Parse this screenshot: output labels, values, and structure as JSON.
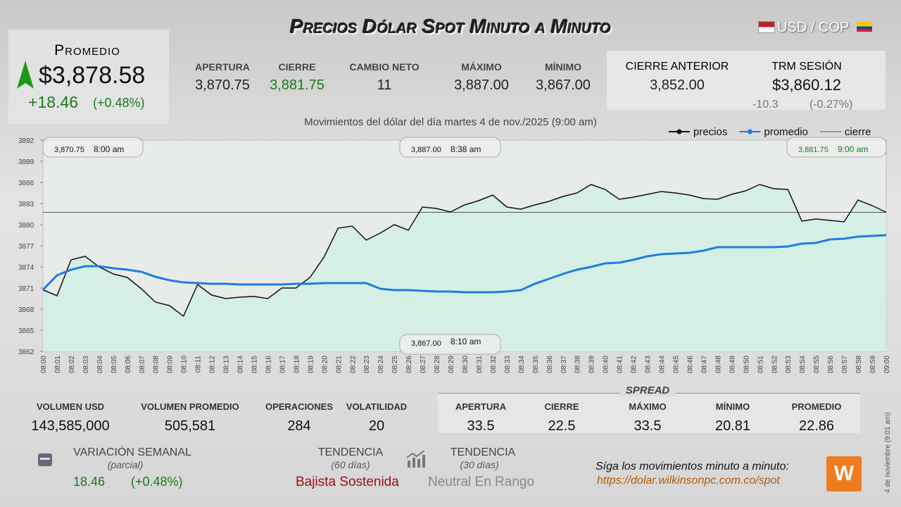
{
  "header": {
    "title": "Precios Dólar Spot Minuto a Minuto",
    "pair": "USD / COP"
  },
  "promedio": {
    "label": "Promedio",
    "price": "$3,878.58",
    "change": "+18.46",
    "change_pct": "(+0.48%)"
  },
  "stats": [
    {
      "label": "APERTURA",
      "value": "3,870.75"
    },
    {
      "label": "CIERRE",
      "value": "3,881.75"
    },
    {
      "label": "CAMBIO NETO",
      "value": "11"
    },
    {
      "label": "MÁXIMO",
      "value": "3,887.00"
    },
    {
      "label": "MÍNIMO",
      "value": "3,867.00"
    }
  ],
  "previous": {
    "close_label": "CIERRE ANTERIOR",
    "close_value": "3,852.00",
    "trm_label": "TRM SESIÓN",
    "trm_value": "$3,860.12",
    "trm_change": "-10.3",
    "trm_change_pct": "(-0.27%)"
  },
  "chart_data": {
    "type": "line",
    "subtitle": "Movimientos del dólar del día martes 4 de nov./2025 (9:00 am)",
    "categories": [
      "08:00",
      "08:01",
      "08:02",
      "08:03",
      "08:04",
      "08:05",
      "08:06",
      "08:07",
      "08:08",
      "08:09",
      "08:10",
      "08:11",
      "08:12",
      "08:13",
      "08:14",
      "08:15",
      "08:16",
      "08:17",
      "08:18",
      "08:19",
      "08:20",
      "08:21",
      "08:22",
      "08:23",
      "08:24",
      "08:25",
      "08:26",
      "08:27",
      "08:28",
      "08:29",
      "08:30",
      "08:31",
      "08:32",
      "08:33",
      "08:34",
      "08:35",
      "08:36",
      "08:37",
      "08:38",
      "08:39",
      "08:40",
      "08:41",
      "08:42",
      "08:43",
      "08:44",
      "08:45",
      "08:46",
      "08:47",
      "08:48",
      "08:49",
      "08:50",
      "08:51",
      "08:52",
      "08:53",
      "08:54",
      "08:55",
      "08:56",
      "08:57",
      "08:58",
      "08:59",
      "09:00"
    ],
    "series": [
      {
        "name": "precios",
        "color": "#111111",
        "values": [
          3870.75,
          3869.9,
          3875,
          3875.5,
          3874,
          3873,
          3872.5,
          3870.9,
          3869,
          3868.5,
          3867,
          3871.5,
          3870,
          3869.5,
          3869.7,
          3869.8,
          3869.5,
          3871,
          3871,
          3872.5,
          3875.4,
          3879.5,
          3879.8,
          3877.8,
          3878.8,
          3880,
          3879.2,
          3882.5,
          3882.3,
          3881.8,
          3882.8,
          3883.4,
          3884.2,
          3882.5,
          3882.2,
          3882.8,
          3883.3,
          3884,
          3884.5,
          3885.7,
          3885,
          3883.6,
          3883.9,
          3884.3,
          3884.7,
          3884.5,
          3884.2,
          3883.7,
          3883.6,
          3884.3,
          3884.8,
          3885.7,
          3885.1,
          3885,
          3880.5,
          3880.8,
          3880.6,
          3880.4,
          3883.5,
          3882.7,
          3881.75
        ]
      },
      {
        "name": "promedio",
        "color": "#1f7de0",
        "values": [
          3870.75,
          3872.8,
          3873.6,
          3874.1,
          3874.1,
          3873.8,
          3873.6,
          3873.3,
          3872.6,
          3872.1,
          3871.8,
          3871.7,
          3871.6,
          3871.6,
          3871.5,
          3871.5,
          3871.5,
          3871.5,
          3871.6,
          3871.6,
          3871.7,
          3871.7,
          3871.7,
          3871.7,
          3870.9,
          3870.7,
          3870.7,
          3870.6,
          3870.5,
          3870.5,
          3870.4,
          3870.4,
          3870.4,
          3870.5,
          3870.7,
          3871.6,
          3872.3,
          3873,
          3873.6,
          3874,
          3874.5,
          3874.6,
          3875,
          3875.5,
          3875.8,
          3875.9,
          3876,
          3876.3,
          3876.8,
          3876.8,
          3876.8,
          3876.8,
          3876.8,
          3876.9,
          3877.3,
          3877.4,
          3877.9,
          3878,
          3878.3,
          3878.4,
          3878.5
        ]
      }
    ],
    "close_line": {
      "name": "cierre",
      "value": 3881.75,
      "color": "#555555"
    },
    "ylim": [
      3862,
      3892
    ],
    "yticks": [
      3862,
      3865,
      3868,
      3871,
      3874,
      3877,
      3880,
      3883,
      3886,
      3889,
      3892
    ],
    "grid": false,
    "legend": "top-right",
    "annotations": [
      {
        "value": "3,870.75",
        "time": "8:00 am"
      },
      {
        "value": "3,887.00",
        "time": "8:38 am"
      },
      {
        "value": "3,881.75",
        "time": "9:00 am"
      },
      {
        "value": "3,867.00",
        "time": "8:10 am"
      }
    ]
  },
  "volume": [
    {
      "label": "VOLUMEN USD",
      "value": "143,585,000"
    },
    {
      "label": "VOLUMEN PROMEDIO",
      "value": "505,581"
    },
    {
      "label": "OPERACIONES",
      "value": "284"
    },
    {
      "label": "VOLATILIDAD",
      "value": "20"
    }
  ],
  "spread": {
    "title": "SPREAD",
    "items": [
      {
        "label": "APERTURA",
        "value": "33.5"
      },
      {
        "label": "CIERRE",
        "value": "22.5"
      },
      {
        "label": "MÁXIMO",
        "value": "33.5"
      },
      {
        "label": "MÍNIMO",
        "value": "20.81"
      },
      {
        "label": "PROMEDIO",
        "value": "22.86"
      }
    ]
  },
  "weekly": {
    "label": "VARIACIÓN SEMANAL",
    "note": "(parcial)",
    "change": "18.46",
    "change_pct": "(+0.48%)"
  },
  "trends": [
    {
      "label": "TENDENCIA",
      "period": "(60 días)",
      "value": "Bajista Sostenida"
    },
    {
      "label": "TENDENCIA",
      "period": "(30 días)",
      "value": "Neutral En Rango"
    }
  ],
  "footer": {
    "text": "Síga los movimientos minuto a minuto:",
    "url": "https://dolar.wilkinsonpc.com.co/spot",
    "side": "4 de noviembre (9:01 am)"
  }
}
